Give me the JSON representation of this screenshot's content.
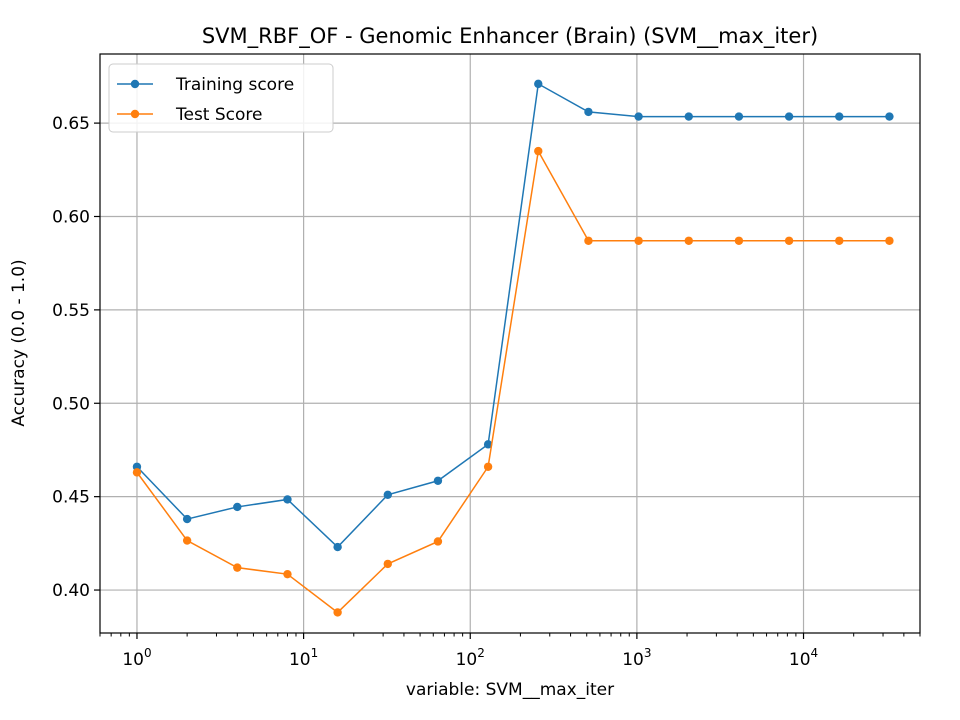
{
  "chart_data": {
    "type": "line",
    "title": "SVM_RBF_OF - Genomic Enhancer (Brain) (SVM__max_iter)",
    "xlabel": "variable: SVM__max_iter",
    "ylabel": "Accuracy (0.0 - 1.0)",
    "xscale": "log",
    "xlim": [
      0.6,
      50000
    ],
    "ylim": [
      0.377,
      0.687
    ],
    "grid": true,
    "legend_position": "top-left",
    "x_ticks": [
      {
        "value": 1,
        "base": "10",
        "exp": "0"
      },
      {
        "value": 10,
        "base": "10",
        "exp": "1"
      },
      {
        "value": 100,
        "base": "10",
        "exp": "2"
      },
      {
        "value": 1000,
        "base": "10",
        "exp": "3"
      },
      {
        "value": 10000,
        "base": "10",
        "exp": "4"
      }
    ],
    "y_ticks": [
      {
        "value": 0.4,
        "label": "0.40"
      },
      {
        "value": 0.45,
        "label": "0.45"
      },
      {
        "value": 0.5,
        "label": "0.50"
      },
      {
        "value": 0.55,
        "label": "0.55"
      },
      {
        "value": 0.6,
        "label": "0.60"
      },
      {
        "value": 0.65,
        "label": "0.65"
      }
    ],
    "x": [
      1,
      2,
      4,
      8,
      16,
      32,
      64,
      128,
      256,
      512,
      1024,
      2048,
      4096,
      8192,
      16384,
      32768
    ],
    "series": [
      {
        "name": "Training score",
        "color": "#1f77b4",
        "values": [
          0.466,
          0.438,
          0.4445,
          0.4485,
          0.423,
          0.451,
          0.4585,
          0.478,
          0.671,
          0.656,
          0.6535,
          0.6535,
          0.6535,
          0.6535,
          0.6535,
          0.6535
        ]
      },
      {
        "name": "Test Score",
        "color": "#ff7f0e",
        "values": [
          0.463,
          0.4265,
          0.412,
          0.4085,
          0.388,
          0.414,
          0.426,
          0.466,
          0.635,
          0.587,
          0.587,
          0.587,
          0.587,
          0.587,
          0.587,
          0.587
        ]
      }
    ]
  }
}
